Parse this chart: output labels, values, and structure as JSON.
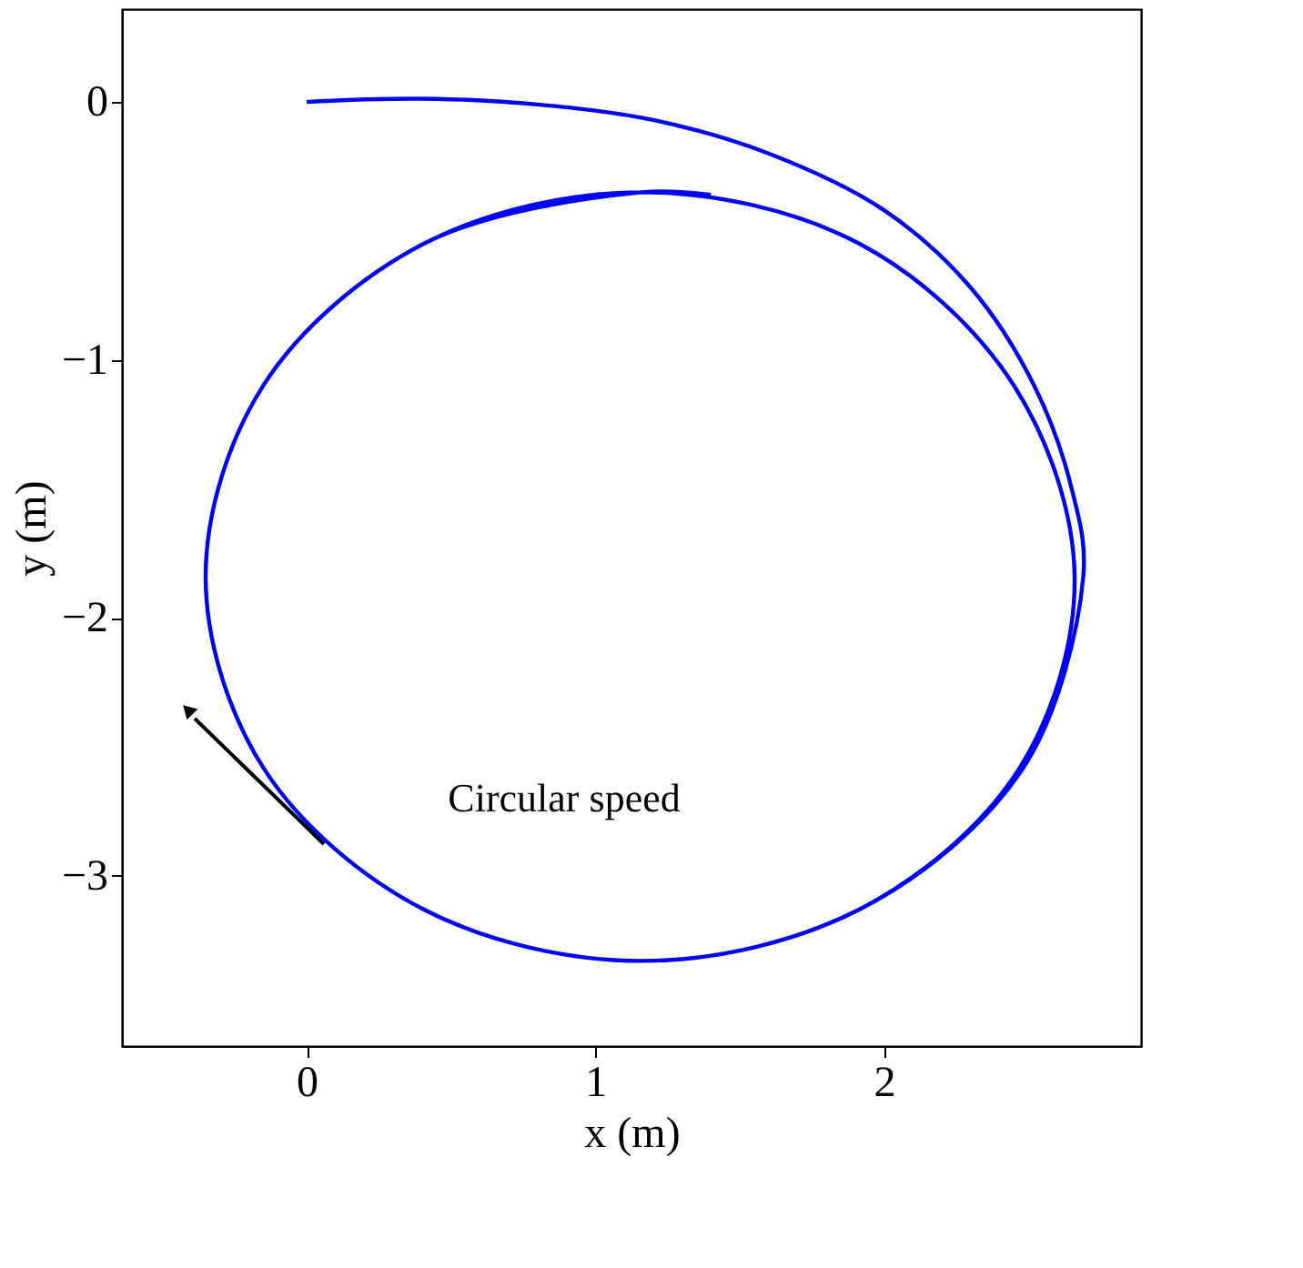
{
  "chart_data": {
    "type": "line",
    "xlabel": "x (m)",
    "ylabel": "y (m)",
    "xlim": [
      -0.64,
      2.89
    ],
    "ylim": [
      -3.66,
      0.36
    ],
    "xticks": [
      0,
      1,
      2
    ],
    "yticks": [
      -3,
      -2,
      -1,
      0
    ],
    "grid": false,
    "series": [
      {
        "color": "#0000ff",
        "x": [
          0,
          0.2,
          0.45,
          0.8,
          1.2,
          1.6,
          2.0,
          2.3,
          2.52,
          2.65,
          2.69,
          2.48,
          1.915,
          1.16,
          0.405,
          -0.148,
          -0.35,
          -0.148,
          0.405,
          1.16,
          1.915,
          2.45,
          2.66,
          2.468,
          1.915,
          1.16,
          0.405,
          -0.148,
          -0.35,
          -0.148,
          0.405,
          1.16,
          1.4
        ],
        "values": [
          0,
          0.01,
          0.012,
          -0.01,
          -0.07,
          -0.2,
          -0.42,
          -0.72,
          -1.1,
          -1.5,
          -1.84,
          -2.585,
          -3.13,
          -3.33,
          -3.13,
          -2.585,
          -1.84,
          -1.095,
          -0.55,
          -0.35,
          -0.55,
          -1.1,
          -1.84,
          -2.585,
          -3.13,
          -3.33,
          -3.13,
          -2.585,
          -1.84,
          -1.095,
          -0.55,
          -0.35,
          -0.36
        ]
      }
    ],
    "annotations": [
      "Circular speed"
    ]
  }
}
